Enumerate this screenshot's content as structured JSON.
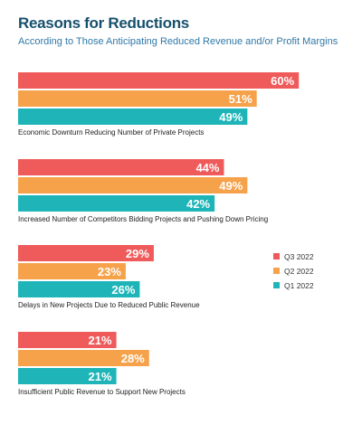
{
  "chart_data": {
    "type": "bar",
    "orientation": "horizontal",
    "title": "Reasons for Reductions",
    "subtitle": "According to Those Anticipating Reduced Revenue and/or Profit Margins",
    "categories": [
      "Economic Downturn Reducing Number of Private Projects",
      "Increased Number of Competitors Bidding Projects and Pushing Down Pricing",
      "Delays in New Projects Due to Reduced Public Revenue",
      "Insufficient Public Revenue to Support New Projects"
    ],
    "series": [
      {
        "name": "Q3 2022",
        "color": "#ef5a5a",
        "values": [
          60,
          44,
          29,
          21
        ]
      },
      {
        "name": "Q2 2022",
        "color": "#f5a24b",
        "values": [
          51,
          49,
          23,
          28
        ]
      },
      {
        "name": "Q1 2022",
        "color": "#1fb5b8",
        "values": [
          49,
          42,
          26,
          21
        ]
      }
    ],
    "value_suffix": "%",
    "xlim": [
      0,
      60
    ],
    "grid": false,
    "legend_position": "right"
  }
}
